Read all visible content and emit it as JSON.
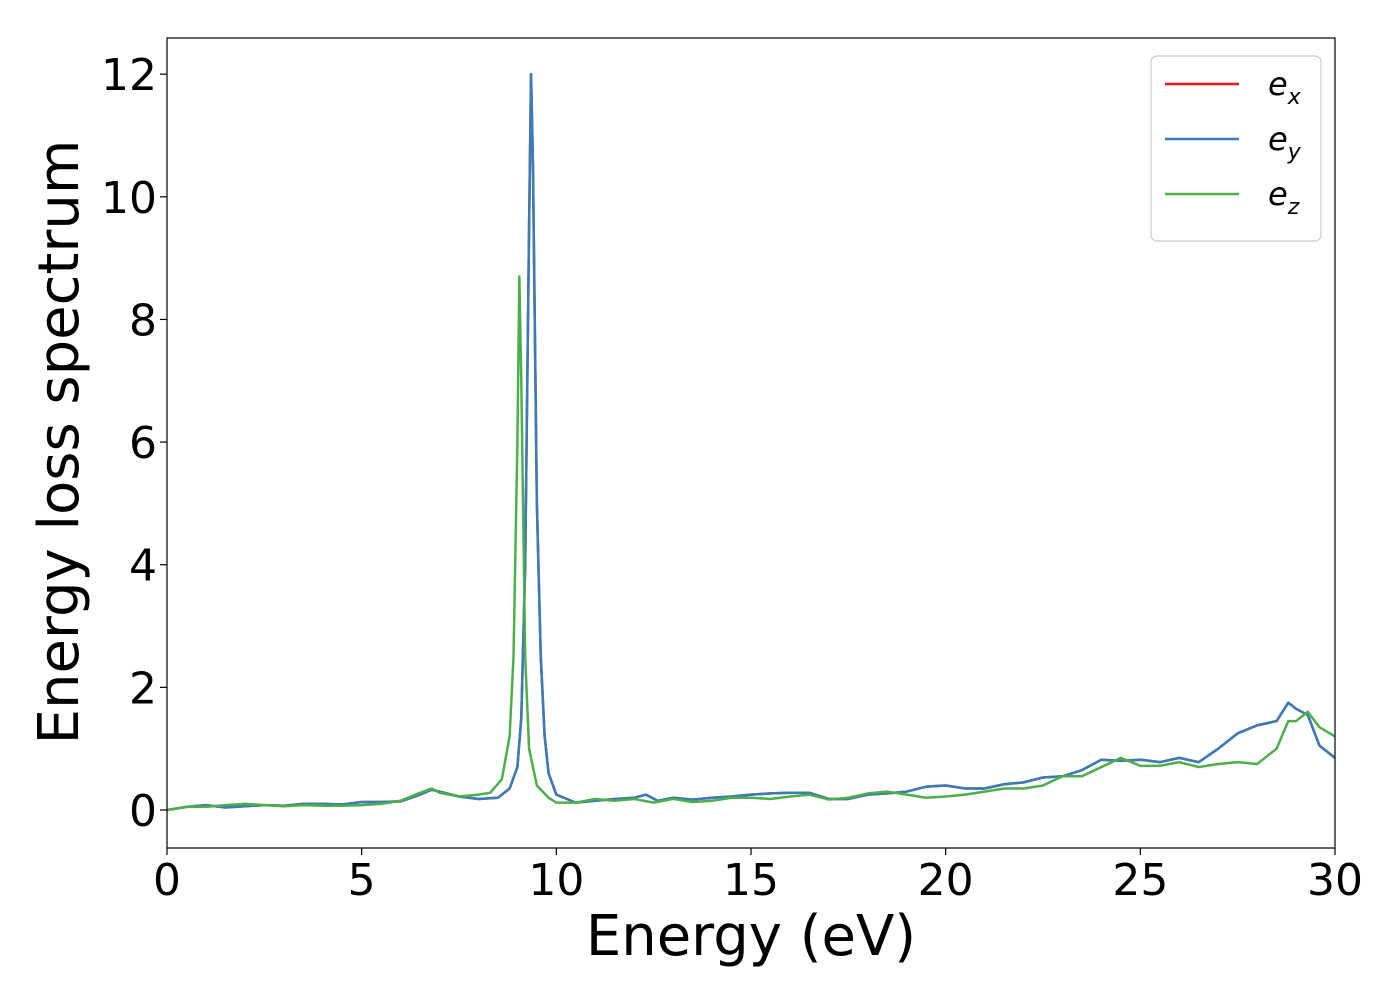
{
  "chart_data": {
    "type": "line",
    "xlabel": "Energy (eV)",
    "ylabel": "Energy loss spectrum",
    "xlim": [
      0,
      30
    ],
    "ylim": [
      -0.62,
      12.59
    ],
    "xticks": [
      0,
      5,
      10,
      15,
      20,
      25,
      30
    ],
    "yticks": [
      0,
      2,
      4,
      6,
      8,
      10,
      12
    ],
    "legend": "upper right",
    "series": [
      {
        "name": "ex",
        "color": "#e41a1c",
        "x": [
          0,
          0.5,
          1,
          1.5,
          2,
          2.5,
          3,
          3.5,
          4,
          4.5,
          5,
          5.5,
          6,
          6.5,
          6.8,
          7,
          7.5,
          8,
          8.5,
          8.8,
          9.0,
          9.1,
          9.2,
          9.3,
          9.35,
          9.4,
          9.5,
          9.6,
          9.7,
          9.8,
          10,
          10.5,
          11,
          11.5,
          12,
          12.3,
          12.6,
          13,
          13.5,
          14,
          14.5,
          15,
          15.5,
          16,
          16.5,
          17,
          17.5,
          18,
          18.5,
          19,
          19.5,
          20,
          20.5,
          21,
          21.5,
          22,
          22.5,
          23,
          23.5,
          24,
          24.5,
          25,
          25.5,
          26,
          26.5,
          27,
          27.5,
          28,
          28.5,
          28.8,
          29,
          29.3,
          29.6,
          30
        ],
        "values": [
          0,
          0.05,
          0.08,
          0.04,
          0.06,
          0.08,
          0.07,
          0.1,
          0.1,
          0.09,
          0.13,
          0.13,
          0.14,
          0.25,
          0.33,
          0.3,
          0.22,
          0.18,
          0.2,
          0.35,
          0.7,
          1.5,
          4.0,
          9.5,
          12.0,
          10.5,
          5.0,
          2.5,
          1.2,
          0.6,
          0.25,
          0.12,
          0.15,
          0.18,
          0.2,
          0.25,
          0.15,
          0.2,
          0.17,
          0.2,
          0.22,
          0.25,
          0.27,
          0.28,
          0.28,
          0.18,
          0.18,
          0.25,
          0.27,
          0.3,
          0.38,
          0.4,
          0.35,
          0.35,
          0.42,
          0.45,
          0.53,
          0.55,
          0.65,
          0.82,
          0.8,
          0.82,
          0.78,
          0.85,
          0.78,
          1.0,
          1.25,
          1.38,
          1.45,
          1.75,
          1.65,
          1.55,
          1.05,
          0.85
        ]
      },
      {
        "name": "ey",
        "color": "#377eb8",
        "x": [
          0,
          0.5,
          1,
          1.5,
          2,
          2.5,
          3,
          3.5,
          4,
          4.5,
          5,
          5.5,
          6,
          6.5,
          6.8,
          7,
          7.5,
          8,
          8.5,
          8.8,
          9.0,
          9.1,
          9.2,
          9.3,
          9.35,
          9.4,
          9.5,
          9.6,
          9.7,
          9.8,
          10,
          10.5,
          11,
          11.5,
          12,
          12.3,
          12.6,
          13,
          13.5,
          14,
          14.5,
          15,
          15.5,
          16,
          16.5,
          17,
          17.5,
          18,
          18.5,
          19,
          19.5,
          20,
          20.5,
          21,
          21.5,
          22,
          22.5,
          23,
          23.5,
          24,
          24.5,
          25,
          25.5,
          26,
          26.5,
          27,
          27.5,
          28,
          28.5,
          28.8,
          29,
          29.3,
          29.6,
          30
        ],
        "values": [
          0,
          0.05,
          0.08,
          0.04,
          0.06,
          0.08,
          0.07,
          0.1,
          0.1,
          0.09,
          0.13,
          0.13,
          0.14,
          0.25,
          0.33,
          0.3,
          0.22,
          0.18,
          0.2,
          0.35,
          0.7,
          1.5,
          4.0,
          9.5,
          12.0,
          10.5,
          5.0,
          2.5,
          1.2,
          0.6,
          0.25,
          0.12,
          0.15,
          0.18,
          0.2,
          0.25,
          0.15,
          0.2,
          0.17,
          0.2,
          0.22,
          0.25,
          0.27,
          0.28,
          0.28,
          0.18,
          0.18,
          0.25,
          0.27,
          0.3,
          0.38,
          0.4,
          0.35,
          0.35,
          0.42,
          0.45,
          0.53,
          0.55,
          0.65,
          0.82,
          0.8,
          0.82,
          0.78,
          0.85,
          0.78,
          1.0,
          1.25,
          1.38,
          1.45,
          1.75,
          1.65,
          1.55,
          1.05,
          0.85
        ]
      },
      {
        "name": "ez",
        "color": "#4daf4a",
        "x": [
          0,
          0.5,
          1,
          1.5,
          2,
          2.5,
          3,
          3.5,
          4,
          4.5,
          5,
          5.5,
          6,
          6.5,
          6.8,
          7,
          7.5,
          8,
          8.3,
          8.6,
          8.8,
          8.9,
          9.0,
          9.05,
          9.1,
          9.2,
          9.3,
          9.5,
          9.8,
          10,
          10.5,
          11,
          11.5,
          12,
          12.5,
          13,
          13.5,
          14,
          14.5,
          15,
          15.5,
          16,
          16.5,
          17,
          17.5,
          18,
          18.5,
          19,
          19.5,
          20,
          20.5,
          21,
          21.5,
          22,
          22.5,
          23,
          23.5,
          24,
          24.5,
          25,
          25.5,
          26,
          26.5,
          27,
          27.5,
          28,
          28.5,
          28.8,
          29,
          29.3,
          29.6,
          30
        ],
        "values": [
          0,
          0.05,
          0.05,
          0.08,
          0.1,
          0.08,
          0.06,
          0.08,
          0.07,
          0.07,
          0.08,
          0.1,
          0.15,
          0.28,
          0.35,
          0.28,
          0.22,
          0.25,
          0.28,
          0.5,
          1.2,
          2.5,
          6.0,
          8.7,
          7.0,
          2.5,
          1.0,
          0.4,
          0.2,
          0.12,
          0.12,
          0.18,
          0.15,
          0.18,
          0.12,
          0.18,
          0.13,
          0.15,
          0.2,
          0.2,
          0.18,
          0.22,
          0.25,
          0.17,
          0.2,
          0.27,
          0.3,
          0.25,
          0.2,
          0.22,
          0.25,
          0.3,
          0.35,
          0.35,
          0.4,
          0.55,
          0.55,
          0.7,
          0.85,
          0.72,
          0.72,
          0.78,
          0.7,
          0.75,
          0.78,
          0.75,
          1.0,
          1.45,
          1.45,
          1.6,
          1.35,
          1.2
        ]
      }
    ]
  }
}
